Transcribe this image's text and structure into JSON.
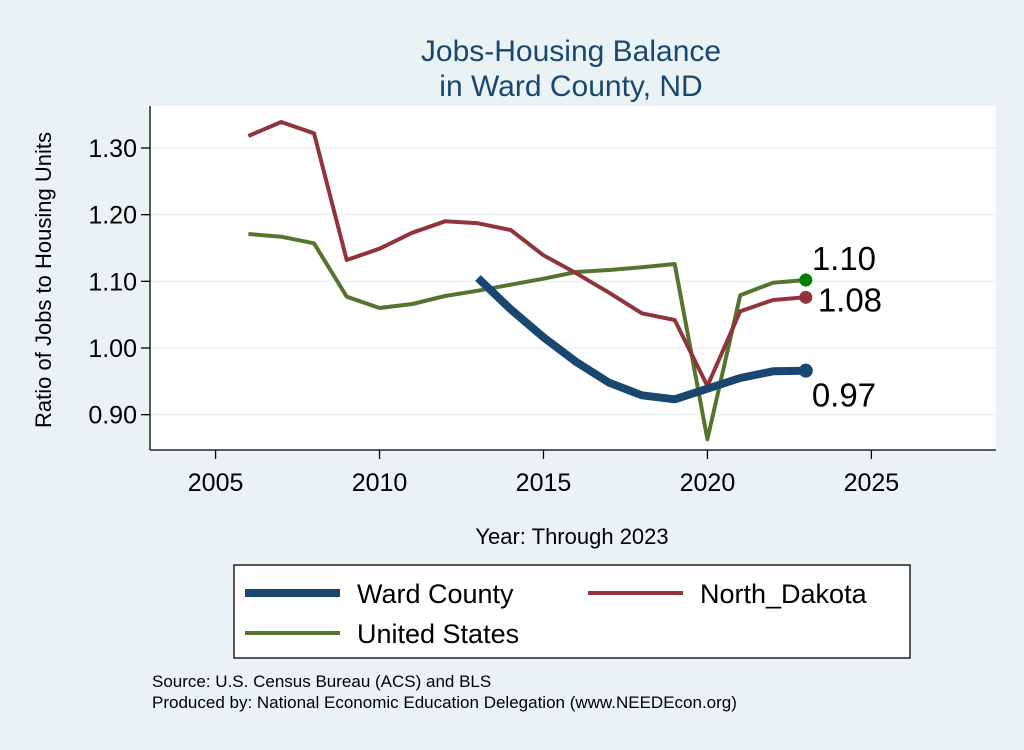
{
  "chart_data": {
    "type": "line",
    "title": [
      "Jobs-Housing Balance",
      "in Ward County, ND"
    ],
    "xlabel": "Year: Through 2023",
    "ylabel": "Ratio of Jobs to Housing Units",
    "xlim": [
      2003,
      2028.8
    ],
    "ylim": [
      0.847,
      1.363
    ],
    "xticks": [
      2005,
      2010,
      2015,
      2020,
      2025
    ],
    "yticks": [
      0.9,
      1.0,
      1.1,
      1.2,
      1.3
    ],
    "ytick_labels": [
      "0.90",
      "1.00",
      "1.10",
      "1.20",
      "1.30"
    ],
    "grid": "horizontal",
    "legend": {
      "placement": "bottom",
      "entries": [
        "Ward County",
        "North_Dakota",
        "United States"
      ]
    },
    "series": [
      {
        "name": "Ward County",
        "color": "#1a476f",
        "x": [
          2013,
          2014,
          2015,
          2016,
          2017,
          2018,
          2019,
          2020,
          2021,
          2022,
          2023
        ],
        "y": [
          1.105,
          1.058,
          1.016,
          0.979,
          0.948,
          0.929,
          0.923,
          0.939,
          0.955,
          0.965,
          0.966
        ],
        "end_label": "0.97"
      },
      {
        "name": "North_Dakota",
        "color": "#90353b",
        "x": [
          2006,
          2007,
          2008,
          2009,
          2010,
          2011,
          2012,
          2013,
          2014,
          2015,
          2016,
          2017,
          2018,
          2019,
          2020,
          2021,
          2022,
          2023
        ],
        "y": [
          1.318,
          1.339,
          1.322,
          1.132,
          1.149,
          1.173,
          1.19,
          1.187,
          1.177,
          1.139,
          1.112,
          1.083,
          1.052,
          1.042,
          0.943,
          1.055,
          1.072,
          1.076
        ],
        "end_label": "1.08"
      },
      {
        "name": "United States",
        "color": "#55752f",
        "end_marker_color": "#008000",
        "x": [
          2006,
          2007,
          2008,
          2009,
          2010,
          2011,
          2012,
          2013,
          2014,
          2015,
          2016,
          2017,
          2018,
          2019,
          2020,
          2021,
          2022,
          2023
        ],
        "y": [
          1.171,
          1.167,
          1.157,
          1.077,
          1.06,
          1.066,
          1.078,
          1.086,
          1.095,
          1.104,
          1.114,
          1.117,
          1.121,
          1.126,
          0.863,
          1.079,
          1.098,
          1.102
        ],
        "end_label": "1.10"
      }
    ]
  },
  "notes": [
    "Source: U.S. Census Bureau (ACS) and BLS",
    "Produced by: National Economic Education Delegation (www.NEEDEcon.org)"
  ]
}
